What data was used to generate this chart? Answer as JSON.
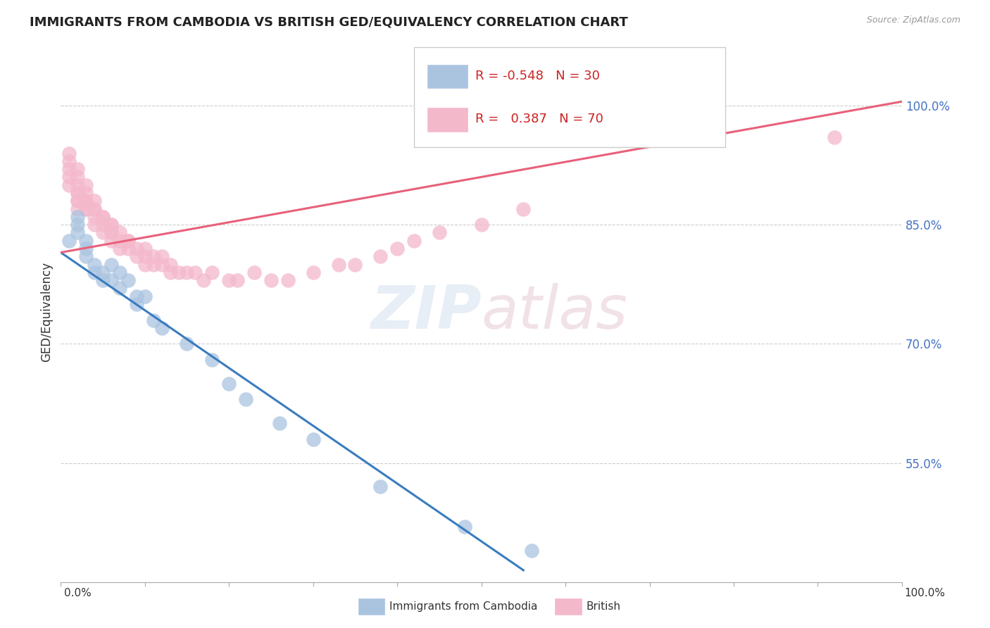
{
  "title": "IMMIGRANTS FROM CAMBODIA VS BRITISH GED/EQUIVALENCY CORRELATION CHART",
  "source": "Source: ZipAtlas.com",
  "ylabel": "GED/Equivalency",
  "xlim": [
    0.0,
    1.0
  ],
  "ylim": [
    0.4,
    1.08
  ],
  "legend_r_cambodia": "-0.548",
  "legend_n_cambodia": "30",
  "legend_r_british": "0.387",
  "legend_n_british": "70",
  "color_cambodia": "#aac4e0",
  "color_british": "#f4b8cb",
  "trendline_color_cambodia": "#3a7cbf",
  "trendline_color_british": "#e8607a",
  "background_color": "#ffffff",
  "title_fontsize": 13,
  "cambodia_x": [
    0.01,
    0.02,
    0.02,
    0.02,
    0.03,
    0.03,
    0.03,
    0.04,
    0.04,
    0.05,
    0.05,
    0.06,
    0.06,
    0.07,
    0.07,
    0.08,
    0.09,
    0.09,
    0.1,
    0.11,
    0.12,
    0.15,
    0.18,
    0.2,
    0.22,
    0.26,
    0.3,
    0.38,
    0.48,
    0.56
  ],
  "cambodia_y": [
    0.83,
    0.86,
    0.85,
    0.84,
    0.83,
    0.82,
    0.81,
    0.8,
    0.79,
    0.79,
    0.78,
    0.8,
    0.78,
    0.79,
    0.77,
    0.78,
    0.76,
    0.75,
    0.76,
    0.73,
    0.72,
    0.7,
    0.68,
    0.65,
    0.63,
    0.6,
    0.58,
    0.52,
    0.47,
    0.44
  ],
  "british_x": [
    0.01,
    0.01,
    0.01,
    0.01,
    0.01,
    0.02,
    0.02,
    0.02,
    0.02,
    0.02,
    0.02,
    0.02,
    0.02,
    0.03,
    0.03,
    0.03,
    0.03,
    0.03,
    0.03,
    0.04,
    0.04,
    0.04,
    0.04,
    0.04,
    0.05,
    0.05,
    0.05,
    0.05,
    0.06,
    0.06,
    0.06,
    0.06,
    0.06,
    0.07,
    0.07,
    0.07,
    0.08,
    0.08,
    0.08,
    0.09,
    0.09,
    0.1,
    0.1,
    0.1,
    0.11,
    0.11,
    0.12,
    0.12,
    0.13,
    0.13,
    0.14,
    0.15,
    0.16,
    0.17,
    0.18,
    0.2,
    0.21,
    0.23,
    0.25,
    0.27,
    0.3,
    0.33,
    0.35,
    0.38,
    0.4,
    0.42,
    0.45,
    0.5,
    0.55,
    0.92
  ],
  "british_y": [
    0.91,
    0.9,
    0.92,
    0.93,
    0.94,
    0.89,
    0.9,
    0.91,
    0.92,
    0.88,
    0.87,
    0.88,
    0.89,
    0.87,
    0.88,
    0.89,
    0.9,
    0.88,
    0.87,
    0.87,
    0.88,
    0.86,
    0.87,
    0.85,
    0.86,
    0.85,
    0.86,
    0.84,
    0.85,
    0.84,
    0.85,
    0.83,
    0.84,
    0.83,
    0.84,
    0.82,
    0.83,
    0.82,
    0.83,
    0.82,
    0.81,
    0.82,
    0.81,
    0.8,
    0.81,
    0.8,
    0.8,
    0.81,
    0.79,
    0.8,
    0.79,
    0.79,
    0.79,
    0.78,
    0.79,
    0.78,
    0.78,
    0.79,
    0.78,
    0.78,
    0.79,
    0.8,
    0.8,
    0.81,
    0.82,
    0.83,
    0.84,
    0.85,
    0.87,
    0.96
  ],
  "trendline_cambodia_x0": 0.0,
  "trendline_cambodia_y0": 0.815,
  "trendline_cambodia_x1": 0.55,
  "trendline_cambodia_y1": 0.415,
  "trendline_british_x0": 0.0,
  "trendline_british_y0": 0.815,
  "trendline_british_x1": 1.0,
  "trendline_british_y1": 1.005
}
